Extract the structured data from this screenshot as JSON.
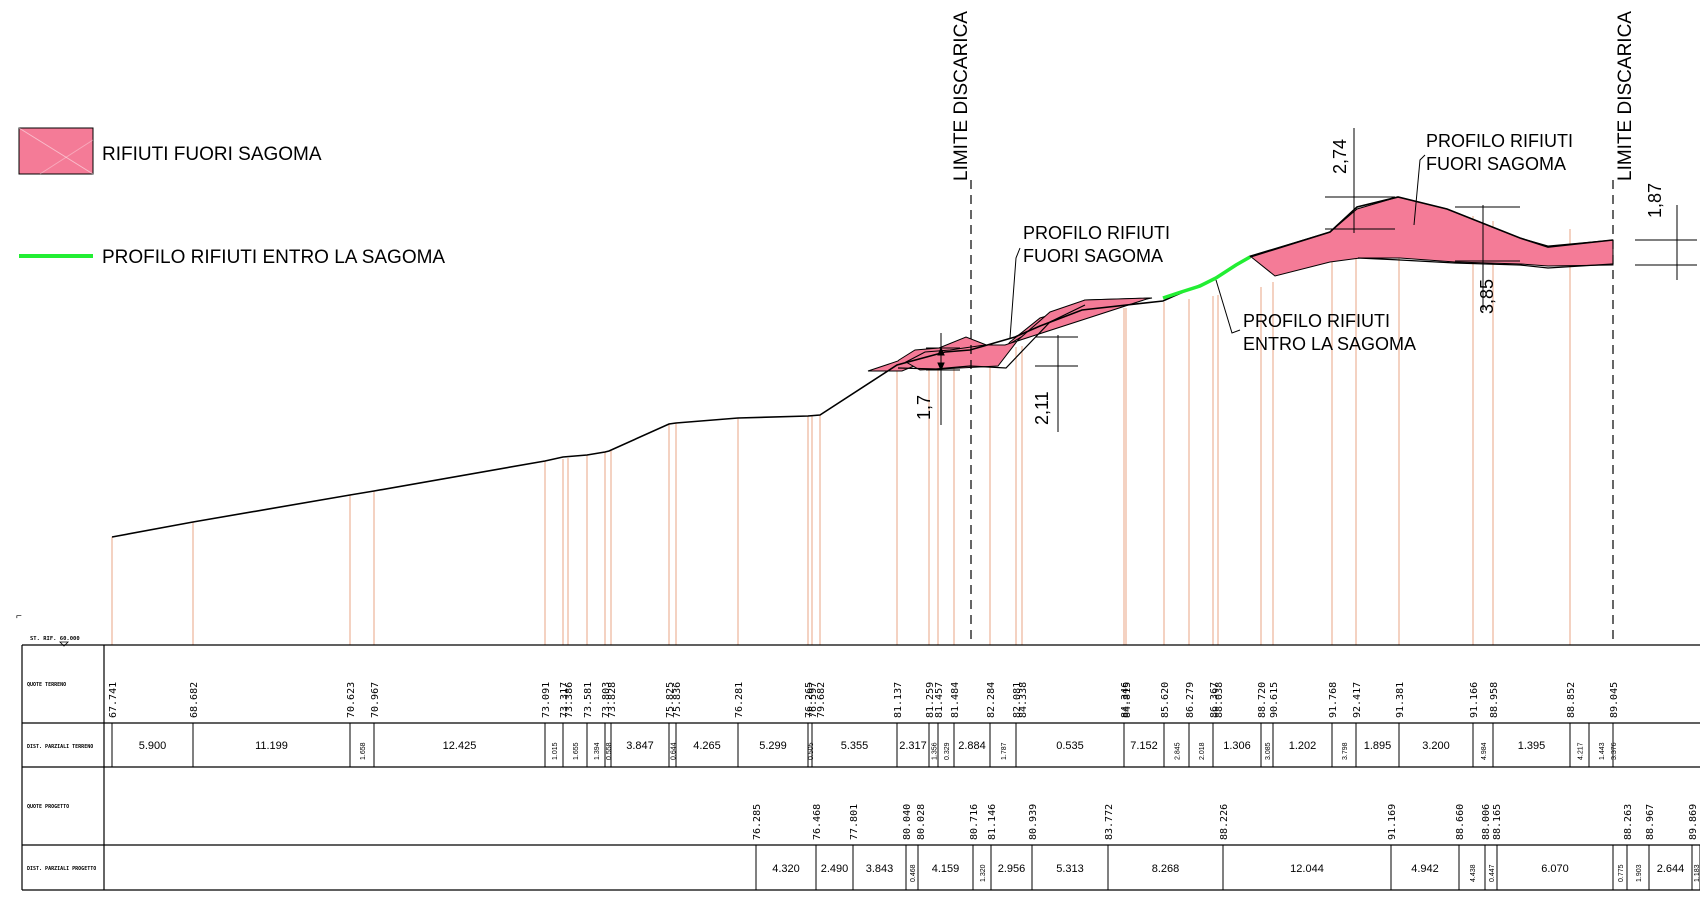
{
  "legend": {
    "waste_out_label": "RIFIUTI FUORI SAGOMA",
    "waste_in_label": "PROFILO RIFIUTI ENTRO LA SAGOMA",
    "waste_out_color": "#f47b97",
    "waste_in_color": "#22ee33"
  },
  "colors": {
    "vertical_lines": "#e9a585",
    "terrain": "#000000"
  },
  "boundaries": {
    "left_label": "LIMITE DISCARICA",
    "right_label": "LIMITE DISCARICA"
  },
  "callouts": {
    "fuori_1_line1": "PROFILO RIFIUTI",
    "fuori_1_line2": "FUORI SAGOMA",
    "entro_line1": "PROFILO RIFIUTI",
    "entro_line2": "ENTRO LA SAGOMA",
    "fuori_2_line1": "PROFILO RIFIUTI",
    "fuori_2_line2": "FUORI SAGOMA"
  },
  "dimensions": {
    "d1": "1,7",
    "d2": "2,11",
    "d3": "2,74",
    "d4": "3,85",
    "d5": "1,87"
  },
  "reference": {
    "corner_mark": "⌐",
    "plane_label": "ST. RIF. 60.000"
  },
  "table": {
    "row_labels": [
      "QUOTE TERRENO",
      "DIST. PARZIALI TERRENO",
      "QUOTE PROGETTO",
      "DIST. PARZIALI PROGETTO"
    ],
    "terrain_quotes": [
      "67.741",
      "68.682",
      "70.623",
      "70.967",
      "73.091",
      "73.317",
      "73.386",
      "73.581",
      "73.803",
      "73.828",
      "75.825",
      "75.836",
      "76.281",
      "76.265",
      "76.597",
      "79.682",
      "81.137",
      "81.259",
      "81.457",
      "81.484",
      "82.284",
      "82.081",
      "84.338",
      "84.346",
      "84.815",
      "85.620",
      "86.279",
      "86.367",
      "88.038",
      "88.720",
      "90.615",
      "91.768",
      "92.417",
      "91.381",
      "91.166",
      "88.958",
      "88.852",
      "89.045"
    ],
    "terrain_distances": [
      "5.900",
      "11.199",
      "1.658",
      "12.425",
      "1.015",
      "1.655",
      "1.394",
      "0.558",
      "3.847",
      "0.644",
      "4.265",
      "5.299",
      "0.505",
      "5.355",
      "2.317",
      "1.356",
      "0.329",
      "2.884",
      "1.787",
      "0.535",
      "7.152",
      "2.845",
      "2.018",
      "1.306",
      "3.085",
      "1.202",
      "3.798",
      "1.895",
      "3.200",
      "4.984",
      "1.395",
      "4.217",
      "1.443",
      "3.376"
    ],
    "project_quotes": [
      "76.285",
      "76.468",
      "77.801",
      "80.040",
      "80.028",
      "80.716",
      "81.146",
      "80.939",
      "83.772",
      "88.226",
      "91.169",
      "88.660",
      "88.006",
      "88.165",
      "88.263",
      "88.967",
      "89.869"
    ],
    "project_distances": [
      "4.320",
      "2.490",
      "3.843",
      "0.468",
      "4.159",
      "1.320",
      "2.956",
      "5.313",
      "8.268",
      "12.044",
      "4.942",
      "4.438",
      "0.447",
      "6.070",
      "0.775",
      "1.903",
      "2.644",
      "1.183"
    ]
  }
}
